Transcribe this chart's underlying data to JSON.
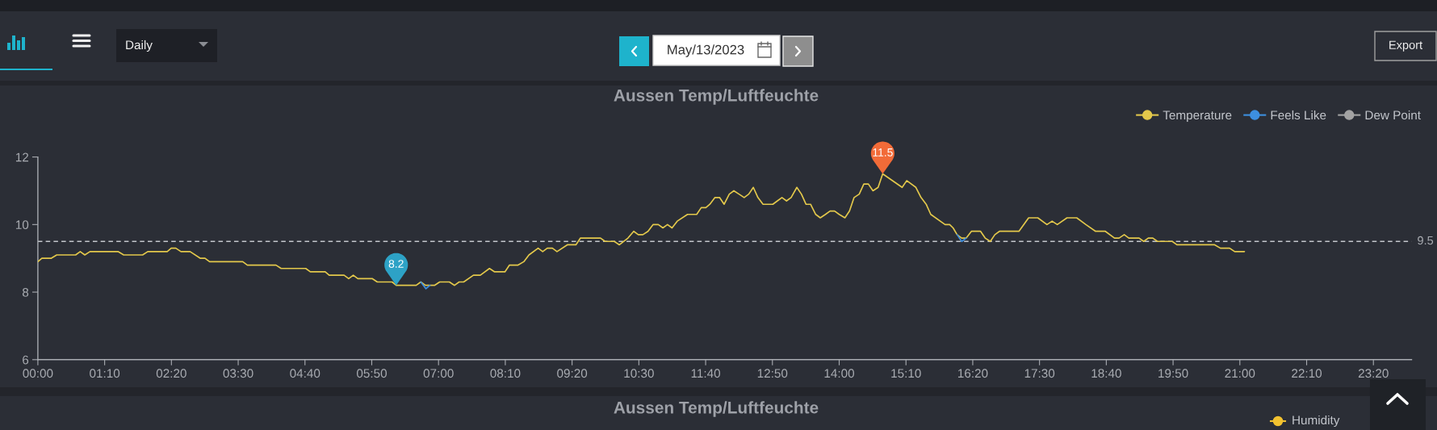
{
  "chart_data": [
    {
      "type": "line",
      "title": "Aussen Temp/Luftfeuchte",
      "series": [
        {
          "name": "Temperature",
          "color": "#e3c84b",
          "x": [
            0,
            0.07,
            0.23,
            0.33,
            0.66,
            0.74,
            0.82,
            0.91,
            1.4,
            1.5,
            1.83,
            1.92,
            2.26,
            2.33,
            2.41,
            2.5,
            2.66,
            2.84,
            2.92,
            3.0,
            3.58,
            3.66,
            4.16,
            4.25,
            4.68,
            4.76,
            5.02,
            5.09,
            5.35,
            5.43,
            5.51,
            5.59,
            5.84,
            5.93,
            6.19,
            6.26,
            6.61,
            6.69,
            6.77,
            6.93,
            7.02,
            7.19,
            7.28,
            7.36,
            7.44,
            7.61,
            7.73,
            7.89,
            7.98,
            8.16,
            8.24,
            8.39,
            8.49,
            8.58,
            8.74,
            8.82,
            8.9,
            8.99,
            9.07,
            9.25,
            9.4,
            9.48,
            9.83,
            9.91,
            10.07,
            10.16,
            10.31,
            10.41,
            10.49,
            10.57,
            10.66,
            10.75,
            10.84,
            10.92,
            11.0,
            11.08,
            11.17,
            11.35,
            11.51,
            11.59,
            11.67,
            11.74,
            11.83,
            11.91,
            11.99,
            12.08,
            12.16,
            12.25,
            12.34,
            12.42,
            12.5,
            12.58,
            12.67,
            12.84,
            12.92,
            13.0,
            13.08,
            13.16,
            13.26,
            13.34,
            13.42,
            13.5,
            13.59,
            13.67,
            13.76,
            13.84,
            13.92,
            14.0,
            14.1,
            14.18,
            14.26,
            14.35,
            14.43,
            14.51,
            14.59,
            14.68,
            14.76,
            15.1,
            15.18,
            15.34,
            15.43,
            15.52,
            15.6,
            15.85,
            15.93,
            15.99,
            16.06,
            16.14,
            16.22,
            16.31,
            16.47,
            16.55,
            16.64,
            16.72,
            16.8,
            17.14,
            17.31,
            17.47,
            17.63,
            17.72,
            17.81,
            17.98,
            18.15,
            18.31,
            18.48,
            18.65,
            18.81,
            18.89,
            18.98,
            19.06,
            19.24,
            19.32,
            19.4,
            19.48,
            19.56,
            19.82,
            19.9,
            20.56,
            20.66,
            20.82,
            20.91,
            21.08
          ],
          "values": [
            8.9,
            9.0,
            9.0,
            9.1,
            9.1,
            9.2,
            9.1,
            9.2,
            9.2,
            9.1,
            9.1,
            9.2,
            9.2,
            9.3,
            9.3,
            9.2,
            9.2,
            9.0,
            9.0,
            8.9,
            8.9,
            8.8,
            8.8,
            8.7,
            8.7,
            8.6,
            8.6,
            8.5,
            8.5,
            8.4,
            8.5,
            8.4,
            8.4,
            8.3,
            8.3,
            8.2,
            8.2,
            8.3,
            8.2,
            8.2,
            8.3,
            8.3,
            8.2,
            8.3,
            8.3,
            8.5,
            8.5,
            8.7,
            8.6,
            8.6,
            8.8,
            8.8,
            8.9,
            9.1,
            9.3,
            9.2,
            9.3,
            9.3,
            9.2,
            9.4,
            9.4,
            9.6,
            9.6,
            9.5,
            9.5,
            9.4,
            9.6,
            9.8,
            9.7,
            9.7,
            9.8,
            10.0,
            10.0,
            9.9,
            10.0,
            9.9,
            10.1,
            10.3,
            10.3,
            10.5,
            10.5,
            10.6,
            10.8,
            10.8,
            10.6,
            10.9,
            11.0,
            10.9,
            10.8,
            10.9,
            11.1,
            10.8,
            10.6,
            10.6,
            10.7,
            10.8,
            10.7,
            10.8,
            11.1,
            10.9,
            10.6,
            10.6,
            10.3,
            10.2,
            10.3,
            10.4,
            10.4,
            10.3,
            10.2,
            10.4,
            10.8,
            10.9,
            11.2,
            11.2,
            11.0,
            11.1,
            11.5,
            11.1,
            11.3,
            11.1,
            10.8,
            10.6,
            10.3,
            10.0,
            10.0,
            9.9,
            9.7,
            9.6,
            9.6,
            9.8,
            9.8,
            9.6,
            9.5,
            9.7,
            9.8,
            9.8,
            10.2,
            10.2,
            10.0,
            10.1,
            10.0,
            10.2,
            10.2,
            10.0,
            9.8,
            9.8,
            9.6,
            9.6,
            9.7,
            9.6,
            9.6,
            9.5,
            9.6,
            9.6,
            9.5,
            9.5,
            9.4,
            9.4,
            9.3,
            9.3,
            9.2,
            9.2
          ]
        },
        {
          "name": "Feels Like",
          "color": "#3d8fe0",
          "x": [
            6.69,
            6.78,
            6.85,
            11.5,
            16.06,
            16.14,
            16.22
          ],
          "values": [
            8.3,
            8.1,
            8.2,
            null,
            9.7,
            9.5,
            9.6
          ]
        },
        {
          "name": "Dew Point",
          "color": "#a3a3a3"
        }
      ],
      "xlim": [
        0,
        24
      ],
      "xticks": [
        {
          "value": 0,
          "label": "00:00"
        },
        {
          "value": 1.1667,
          "label": "01:10"
        },
        {
          "value": 2.3333,
          "label": "02:20"
        },
        {
          "value": 3.5,
          "label": "03:30"
        },
        {
          "value": 4.6667,
          "label": "04:40"
        },
        {
          "value": 5.8333,
          "label": "05:50"
        },
        {
          "value": 7,
          "label": "07:00"
        },
        {
          "value": 8.1667,
          "label": "08:10"
        },
        {
          "value": 9.3333,
          "label": "09:20"
        },
        {
          "value": 10.5,
          "label": "10:30"
        },
        {
          "value": 11.6667,
          "label": "11:40"
        },
        {
          "value": 12.8333,
          "label": "12:50"
        },
        {
          "value": 14,
          "label": "14:00"
        },
        {
          "value": 15.1667,
          "label": "15:10"
        },
        {
          "value": 16.3333,
          "label": "16:20"
        },
        {
          "value": 17.5,
          "label": "17:30"
        },
        {
          "value": 18.6667,
          "label": "18:40"
        },
        {
          "value": 19.8333,
          "label": "19:50"
        },
        {
          "value": 21,
          "label": "21:00"
        },
        {
          "value": 22.1667,
          "label": "22:10"
        },
        {
          "value": 23.3333,
          "label": "23:20"
        }
      ],
      "ylim": [
        6,
        12
      ],
      "yticks": [
        6,
        8,
        10,
        12
      ],
      "ref_lines": [
        {
          "axis": "y",
          "value": 9.5,
          "label": "9.5",
          "color": "#c4c7cc",
          "line_style": "dashed"
        }
      ],
      "annotations": [
        "Daily",
        "May/13/2023",
        "Export",
        {
          "text": "8.2",
          "x": 6.26,
          "y": 8.2
        },
        {
          "text": "11.5",
          "x": 14.76,
          "y": 11.5
        }
      ],
      "legend": "top right"
    },
    {
      "type": "other",
      "title": "Aussen Temp/Luftfeuchte",
      "annotations": [
        "Humidity"
      ]
    }
  ]
}
